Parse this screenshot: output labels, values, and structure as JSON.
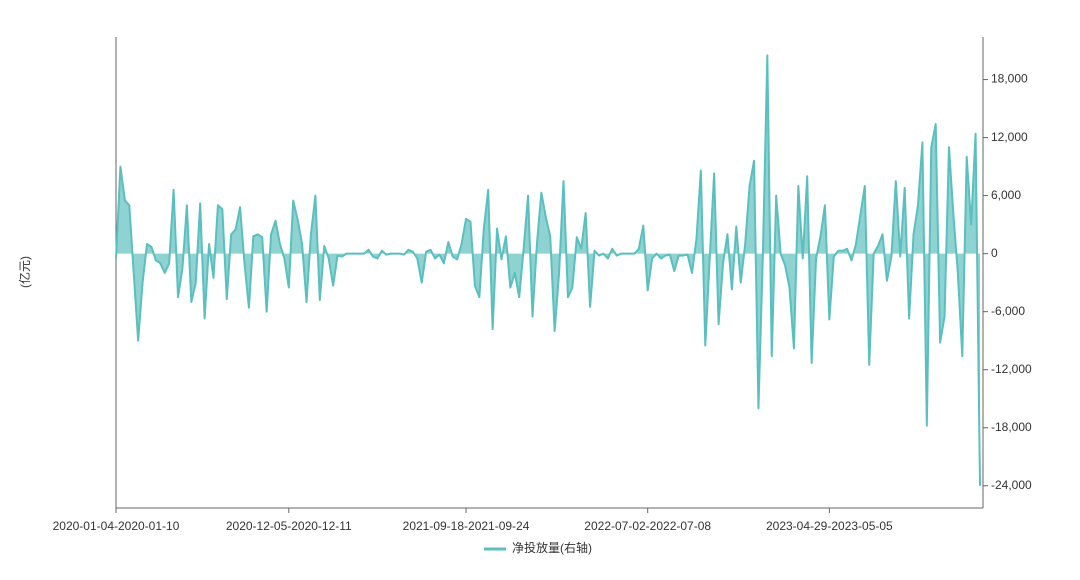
{
  "chart_data": {
    "type": "area",
    "y_label": "(亿元)",
    "categories": [
      "2020-01-04-2020-01-10",
      null,
      null,
      null,
      null,
      null,
      null,
      null,
      null,
      null,
      null,
      null,
      null,
      null,
      null,
      null,
      null,
      null,
      null,
      null,
      null,
      null,
      null,
      null,
      null,
      null,
      null,
      null,
      null,
      null,
      null,
      null,
      null,
      null,
      null,
      null,
      null,
      null,
      null,
      "2020-12-05-2020-12-11",
      null,
      null,
      null,
      null,
      null,
      null,
      null,
      null,
      null,
      null,
      null,
      null,
      null,
      null,
      null,
      null,
      null,
      null,
      null,
      null,
      null,
      null,
      null,
      null,
      null,
      null,
      null,
      null,
      null,
      null,
      null,
      null,
      null,
      null,
      null,
      null,
      null,
      null,
      null,
      "2021-09-18-2021-09-24",
      null,
      null,
      null,
      null,
      null,
      null,
      null,
      null,
      null,
      null,
      null,
      null,
      null,
      null,
      null,
      null,
      null,
      null,
      null,
      null,
      null,
      null,
      null,
      null,
      null,
      null,
      null,
      null,
      null,
      null,
      null,
      null,
      null,
      null,
      null,
      null,
      null,
      null,
      null,
      null,
      "2022-07-02-2022-07-08",
      null,
      null,
      null,
      null,
      null,
      null,
      null,
      null,
      null,
      null,
      null,
      null,
      null,
      null,
      null,
      null,
      null,
      null,
      null,
      null,
      null,
      null,
      null,
      null,
      null,
      null,
      null,
      null,
      null,
      null,
      null,
      null,
      null,
      null,
      null,
      null,
      null,
      null,
      null,
      null,
      "2023-04-29-2023-05-05",
      null,
      null,
      null,
      null,
      null,
      null,
      null,
      null,
      null,
      null,
      null,
      null,
      null,
      null,
      null,
      null,
      null,
      null,
      null,
      null,
      null,
      null,
      null,
      null,
      null,
      null,
      null,
      null,
      null,
      null,
      null,
      null,
      null,
      null
    ],
    "series": [
      {
        "name": "净投放量(右轴)",
        "color": "#5bbfbf",
        "fill": "#8fd2d2",
        "axis": "y2",
        "values": [
          -500,
          9000,
          5500,
          5000,
          -2000,
          -9000,
          -3000,
          1000,
          700,
          -700,
          -1000,
          -2000,
          -1000,
          6600,
          -4500,
          -1500,
          5000,
          -5000,
          -3000,
          5200,
          -6700,
          1000,
          -2500,
          5000,
          4600,
          -4700,
          2000,
          2500,
          4800,
          -1000,
          -5600,
          1800,
          2000,
          1700,
          -6000,
          2000,
          3400,
          1000,
          -500,
          -3500,
          5500,
          3500,
          1000,
          -5000,
          2000,
          6000,
          -4800,
          800,
          -500,
          -3300,
          -200,
          -300,
          0,
          0,
          0,
          0,
          0,
          400,
          -300,
          -500,
          300,
          -100,
          0,
          0,
          0,
          -100,
          400,
          200,
          -500,
          -3000,
          200,
          400,
          -500,
          -100,
          -1000,
          1200,
          -300,
          -600,
          1000,
          3600,
          3300,
          -3300,
          -4500,
          2500,
          6600,
          -7800,
          2600,
          -600,
          1800,
          -3500,
          -2000,
          -4500,
          500,
          6000,
          -6500,
          1000,
          6300,
          3800,
          1800,
          -8000,
          -2000,
          7500,
          -4500,
          -3500,
          1700,
          500,
          4200,
          -5500,
          300,
          -200,
          0,
          -500,
          500,
          -200,
          0,
          0,
          0,
          0,
          500,
          2900,
          -3800,
          -500,
          0,
          -500,
          -200,
          -100,
          -1800,
          -200,
          -200,
          -100,
          -2000,
          1500,
          8600,
          -9500,
          -500,
          8300,
          -7300,
          -1000,
          2000,
          -3700,
          2800,
          -3000,
          1000,
          7000,
          9600,
          -16000,
          0,
          20500,
          -10600,
          6000,
          0,
          -1200,
          -3500,
          -9800,
          7000,
          -500,
          8000,
          -11300,
          -500,
          1800,
          5000,
          -6800,
          -300,
          300,
          300,
          500,
          -700,
          1000,
          4000,
          7000,
          -11500,
          0,
          800,
          2000,
          -2800,
          -300,
          7500,
          -300,
          6800,
          -6700,
          2000,
          5000,
          11500,
          -17800,
          11000,
          13400,
          -9200,
          -6500,
          11000,
          4000,
          -2000,
          -10600,
          10000,
          3000,
          12400,
          -24000
        ]
      }
    ],
    "y2lim": [
      -26300,
      22400
    ],
    "y2ticks": [
      {
        "value": 18000,
        "label": "18,000"
      },
      {
        "value": 12000,
        "label": "12,000"
      },
      {
        "value": 6000,
        "label": "6,000"
      },
      0,
      {
        "value": -6000,
        "label": "-6,000"
      },
      {
        "value": -12000,
        "label": "-12,000"
      },
      {
        "value": -18000,
        "label": "-18,000"
      },
      {
        "value": -24000,
        "label": "-24,000"
      }
    ],
    "legend": "bottom"
  }
}
